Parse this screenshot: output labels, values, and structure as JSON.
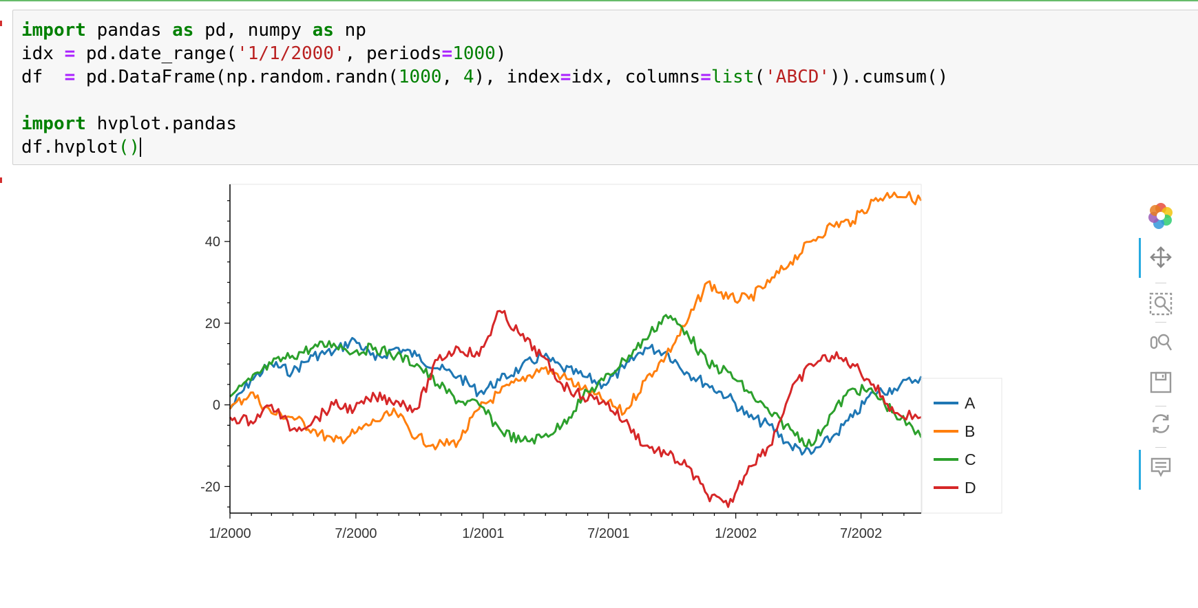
{
  "code": {
    "lines": [
      "import pandas as pd, numpy as np",
      "idx = pd.date_range('1/1/2000', periods=1000)",
      "df  = pd.DataFrame(np.random.randn(1000, 4), index=idx, columns=list('ABCD')).cumsum()",
      "",
      "import hvplot.pandas",
      "df.hvplot()"
    ]
  },
  "toolbar": {
    "tools": [
      {
        "name": "bokeh-logo",
        "active": false
      },
      {
        "name": "pan-tool-icon",
        "active": true
      },
      {
        "name": "box-zoom-tool-icon",
        "active": false
      },
      {
        "name": "wheel-zoom-tool-icon",
        "active": false
      },
      {
        "name": "save-tool-icon",
        "active": false
      },
      {
        "name": "reset-tool-icon",
        "active": false
      },
      {
        "name": "hover-tool-icon",
        "active": true
      }
    ]
  },
  "chart_data": {
    "type": "line",
    "title": "",
    "xlabel": "",
    "ylabel": "",
    "xlim": [
      "2000-01-01",
      "2002-09-26"
    ],
    "ylim": [
      -26.5,
      54
    ],
    "x_ticks": [
      "1/2000",
      "7/2000",
      "1/2001",
      "7/2001",
      "1/2002",
      "7/2002"
    ],
    "x_tick_dates": [
      "2000-01-01",
      "2000-07-01",
      "2001-01-01",
      "2001-07-01",
      "2002-01-01",
      "2002-07-01"
    ],
    "y_ticks": [
      "-20",
      "0",
      "20",
      "40"
    ],
    "y_tick_values": [
      -20,
      0,
      20,
      40
    ],
    "grid": false,
    "legend_position": "right",
    "x": [
      "2000-01-01",
      "2000-01-31",
      "2000-03-01",
      "2000-03-31",
      "2000-04-30",
      "2000-05-30",
      "2000-06-29",
      "2000-07-29",
      "2000-08-28",
      "2000-09-27",
      "2000-10-27",
      "2000-11-26",
      "2000-12-26",
      "2001-01-25",
      "2001-02-24",
      "2001-03-26",
      "2001-04-25",
      "2001-05-25",
      "2001-06-24",
      "2001-07-24",
      "2001-08-23",
      "2001-09-22",
      "2001-10-22",
      "2001-11-21",
      "2001-12-21",
      "2002-01-20",
      "2002-02-19",
      "2002-03-21",
      "2002-04-20",
      "2002-05-20",
      "2002-06-19",
      "2002-07-19",
      "2002-08-18",
      "2002-09-26"
    ],
    "series": [
      {
        "name": "A",
        "color": "#1f77b4",
        "values": [
          -1,
          6,
          10,
          8,
          12,
          13,
          16,
          11,
          14,
          12,
          9,
          7,
          3,
          6,
          9,
          12,
          9,
          7,
          5,
          9,
          14,
          13,
          8,
          5,
          2,
          -3,
          -5,
          -10,
          -12,
          -8,
          -3,
          3,
          4,
          7
        ]
      },
      {
        "name": "B",
        "color": "#ff7f0e",
        "values": [
          -1,
          3,
          -2,
          -3,
          -6,
          -9,
          -7,
          -4,
          -2,
          -8,
          -10,
          -9,
          -1,
          3,
          6,
          9,
          7,
          4,
          1,
          -2,
          6,
          12,
          20,
          30,
          26,
          26,
          30,
          35,
          40,
          44,
          45,
          50,
          52,
          50
        ]
      },
      {
        "name": "C",
        "color": "#2ca02c",
        "values": [
          2,
          6,
          10,
          12,
          14,
          15,
          13,
          14,
          12,
          10,
          5,
          1,
          0,
          -6,
          -9,
          -8,
          -5,
          2,
          6,
          11,
          16,
          22,
          18,
          10,
          8,
          3,
          -2,
          -6,
          -10,
          -2,
          4,
          3,
          -2,
          -8
        ]
      },
      {
        "name": "D",
        "color": "#d62728",
        "values": [
          -3,
          -4,
          0,
          -6,
          -4,
          0,
          -1,
          2,
          1,
          -1,
          11,
          14,
          12,
          23,
          17,
          12,
          5,
          2,
          1,
          -4,
          -10,
          -12,
          -15,
          -22,
          -25,
          -15,
          -10,
          3,
          10,
          12,
          10,
          5,
          -2,
          -3
        ]
      }
    ]
  }
}
